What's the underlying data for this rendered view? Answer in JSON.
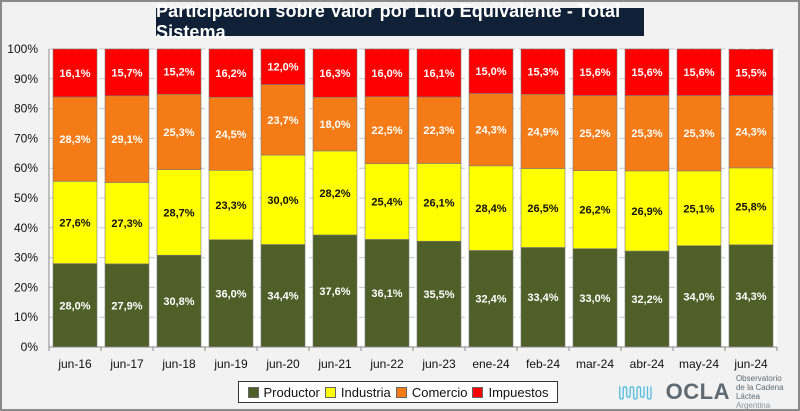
{
  "chart_data": {
    "type": "bar",
    "stacked": true,
    "title": "Participación sobre Valor por Litro Equivalente - Total Sistema",
    "xlabel": "",
    "ylabel": "",
    "ylim": [
      0,
      100
    ],
    "yticks": [
      "0%",
      "10%",
      "20%",
      "30%",
      "40%",
      "50%",
      "60%",
      "70%",
      "80%",
      "90%",
      "100%"
    ],
    "grid": true,
    "legend_position": "bottom",
    "categories": [
      "jun-16",
      "jun-17",
      "jun-18",
      "jun-19",
      "jun-20",
      "jun-21",
      "jun-22",
      "jun-23",
      "ene-24",
      "feb-24",
      "mar-24",
      "abr-24",
      "may-24",
      "jun-24"
    ],
    "series": [
      {
        "name": "Productor",
        "color": "#4e5f28",
        "label_color": "#ffffff",
        "values": [
          28.0,
          27.9,
          30.8,
          36.0,
          34.4,
          37.6,
          36.1,
          35.5,
          32.4,
          33.4,
          33.0,
          32.2,
          34.0,
          34.3
        ],
        "labels": [
          "28,0%",
          "27,9%",
          "30,8%",
          "36,0%",
          "34,4%",
          "37,6%",
          "36,1%",
          "35,5%",
          "32,4%",
          "33,4%",
          "33,0%",
          "32,2%",
          "34,0%",
          "34,3%"
        ]
      },
      {
        "name": "Industria",
        "color": "#ffff00",
        "label_color": "#111111",
        "values": [
          27.6,
          27.3,
          28.7,
          23.3,
          30.0,
          28.2,
          25.4,
          26.1,
          28.4,
          26.5,
          26.2,
          26.9,
          25.1,
          25.8
        ],
        "labels": [
          "27,6%",
          "27,3%",
          "28,7%",
          "23,3%",
          "30,0%",
          "28,2%",
          "25,4%",
          "26,1%",
          "28,4%",
          "26,5%",
          "26,2%",
          "26,9%",
          "25,1%",
          "25,8%"
        ]
      },
      {
        "name": "Comercio",
        "color": "#f47b16",
        "label_color": "#ffffff",
        "values": [
          28.3,
          29.1,
          25.3,
          24.5,
          23.7,
          18.0,
          22.5,
          22.3,
          24.3,
          24.9,
          25.2,
          25.3,
          25.3,
          24.3
        ],
        "labels": [
          "28,3%",
          "29,1%",
          "25,3%",
          "24,5%",
          "23,7%",
          "18,0%",
          "22,5%",
          "22,3%",
          "24,3%",
          "24,9%",
          "25,2%",
          "25,3%",
          "25,3%",
          "24,3%"
        ]
      },
      {
        "name": "Impuestos",
        "color": "#ff0000",
        "label_color": "#ffffff",
        "values": [
          16.1,
          15.7,
          15.2,
          16.2,
          12.0,
          16.3,
          16.0,
          16.1,
          15.0,
          15.3,
          15.6,
          15.6,
          15.6,
          15.5
        ],
        "labels": [
          "16,1%",
          "15,7%",
          "15,2%",
          "16,2%",
          "12,0%",
          "16,3%",
          "16,0%",
          "16,1%",
          "15,0%",
          "15,3%",
          "15,6%",
          "15,6%",
          "15,6%",
          "15,5%"
        ]
      }
    ]
  },
  "logo": {
    "name": "OCLA",
    "line1": "Observatorio",
    "line2": "de la Cadena Láctea",
    "line3": "Argentina"
  }
}
